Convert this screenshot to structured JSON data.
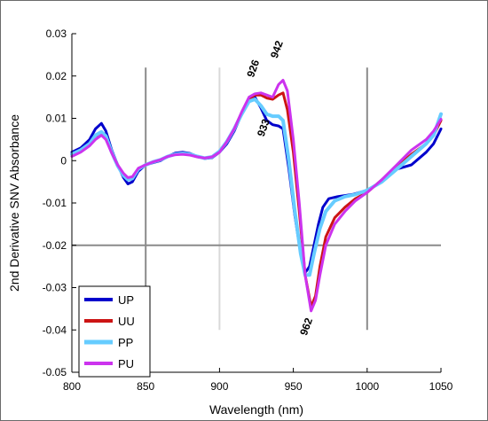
{
  "chart_data": {
    "type": "line",
    "title": "",
    "xlabel": "Wavelength (nm)",
    "ylabel": "2nd Derivative SNV Absorbance",
    "xlim": [
      800,
      1050
    ],
    "ylim": [
      -0.05,
      0.03
    ],
    "xticks": [
      "800",
      "850",
      "900",
      "950",
      "1000",
      "1050"
    ],
    "yticks": [
      "0.03",
      "0.02",
      "0.01",
      "0",
      "-0.01",
      "-0.02",
      "-0.03",
      "-0.04",
      "-0.05"
    ],
    "grid": false,
    "legend_position": "bottom-left",
    "reference_lines": [
      {
        "orientation": "vertical",
        "x": 850,
        "y_from": -0.04,
        "y_to": 0.022,
        "color": "#8a8a8a"
      },
      {
        "orientation": "vertical",
        "x": 900,
        "y_from": -0.04,
        "y_to": 0.022,
        "color": "#d9d9d9"
      },
      {
        "orientation": "vertical",
        "x": 1000,
        "y_from": -0.04,
        "y_to": 0.022,
        "color": "#8a8a8a"
      },
      {
        "orientation": "horizontal",
        "y": -0.02,
        "x_from": 800,
        "x_to": 1050,
        "color": "#8a8a8a"
      }
    ],
    "annotations": [
      {
        "text": "926",
        "x": 925,
        "y": 0.0215,
        "rotate": -70
      },
      {
        "text": "942",
        "x": 941,
        "y": 0.026,
        "rotate": -70
      },
      {
        "text": "933",
        "x": 932,
        "y": 0.0075,
        "rotate": -70
      },
      {
        "text": "962",
        "x": 961,
        "y": -0.0395,
        "rotate": -70
      }
    ],
    "series": [
      {
        "name": "UP",
        "color": "#0000cc",
        "width": 3,
        "points": [
          [
            800,
            0.002
          ],
          [
            806,
            0.003
          ],
          [
            812,
            0.005
          ],
          [
            816,
            0.0075
          ],
          [
            820,
            0.0088
          ],
          [
            823,
            0.007
          ],
          [
            827,
            0.0025
          ],
          [
            831,
            -0.001
          ],
          [
            835,
            -0.004
          ],
          [
            838,
            -0.0055
          ],
          [
            841,
            -0.005
          ],
          [
            845,
            -0.0025
          ],
          [
            850,
            -0.001
          ],
          [
            855,
            -0.0005
          ],
          [
            860,
            0
          ],
          [
            865,
            0.001
          ],
          [
            870,
            0.0018
          ],
          [
            875,
            0.002
          ],
          [
            880,
            0.0017
          ],
          [
            885,
            0.001
          ],
          [
            890,
            0.0005
          ],
          [
            895,
            0.0007
          ],
          [
            900,
            0.002
          ],
          [
            905,
            0.004
          ],
          [
            910,
            0.007
          ],
          [
            915,
            0.011
          ],
          [
            920,
            0.0145
          ],
          [
            924,
            0.015
          ],
          [
            928,
            0.0125
          ],
          [
            932,
            0.0095
          ],
          [
            936,
            0.0085
          ],
          [
            940,
            0.0082
          ],
          [
            943,
            0.0075
          ],
          [
            947,
            -0.002
          ],
          [
            951,
            -0.013
          ],
          [
            955,
            -0.022
          ],
          [
            958,
            -0.0265
          ],
          [
            961,
            -0.025
          ],
          [
            964,
            -0.02
          ],
          [
            967,
            -0.015
          ],
          [
            970,
            -0.011
          ],
          [
            974,
            -0.009
          ],
          [
            980,
            -0.0085
          ],
          [
            990,
            -0.008
          ],
          [
            1000,
            -0.007
          ],
          [
            1010,
            -0.005
          ],
          [
            1020,
            -0.002
          ],
          [
            1030,
            -0.001
          ],
          [
            1040,
            0.002
          ],
          [
            1045,
            0.004
          ],
          [
            1050,
            0.0075
          ]
        ]
      },
      {
        "name": "UU",
        "color": "#cc1414",
        "width": 3,
        "points": [
          [
            800,
            0.0015
          ],
          [
            806,
            0.0025
          ],
          [
            812,
            0.004
          ],
          [
            816,
            0.0058
          ],
          [
            820,
            0.0065
          ],
          [
            823,
            0.0055
          ],
          [
            827,
            0.002
          ],
          [
            831,
            -0.001
          ],
          [
            835,
            -0.0035
          ],
          [
            838,
            -0.0045
          ],
          [
            841,
            -0.0042
          ],
          [
            845,
            -0.002
          ],
          [
            850,
            -0.001
          ],
          [
            855,
            -0.0003
          ],
          [
            860,
            0.0002
          ],
          [
            865,
            0.001
          ],
          [
            870,
            0.0015
          ],
          [
            875,
            0.0016
          ],
          [
            880,
            0.0014
          ],
          [
            885,
            0.0009
          ],
          [
            890,
            0.0006
          ],
          [
            895,
            0.0009
          ],
          [
            900,
            0.0022
          ],
          [
            905,
            0.0045
          ],
          [
            910,
            0.0075
          ],
          [
            915,
            0.011
          ],
          [
            920,
            0.0145
          ],
          [
            924,
            0.0155
          ],
          [
            928,
            0.0155
          ],
          [
            932,
            0.0148
          ],
          [
            936,
            0.0145
          ],
          [
            940,
            0.0155
          ],
          [
            943,
            0.016
          ],
          [
            946,
            0.012
          ],
          [
            950,
            0.002
          ],
          [
            954,
            -0.012
          ],
          [
            958,
            -0.027
          ],
          [
            962,
            -0.0345
          ],
          [
            965,
            -0.032
          ],
          [
            968,
            -0.025
          ],
          [
            972,
            -0.018
          ],
          [
            978,
            -0.0135
          ],
          [
            985,
            -0.011
          ],
          [
            992,
            -0.009
          ],
          [
            1000,
            -0.0075
          ],
          [
            1010,
            -0.0045
          ],
          [
            1020,
            -0.0015
          ],
          [
            1030,
            0.0015
          ],
          [
            1040,
            0.004
          ],
          [
            1045,
            0.006
          ],
          [
            1050,
            0.0095
          ]
        ]
      },
      {
        "name": "PP",
        "color": "#66ccff",
        "width": 4,
        "points": [
          [
            800,
            0.0015
          ],
          [
            806,
            0.0025
          ],
          [
            812,
            0.004
          ],
          [
            816,
            0.006
          ],
          [
            820,
            0.0068
          ],
          [
            823,
            0.0058
          ],
          [
            827,
            0.002
          ],
          [
            831,
            -0.0012
          ],
          [
            835,
            -0.0035
          ],
          [
            838,
            -0.0045
          ],
          [
            841,
            -0.0042
          ],
          [
            845,
            -0.002
          ],
          [
            850,
            -0.001
          ],
          [
            855,
            -0.0003
          ],
          [
            860,
            0.0002
          ],
          [
            865,
            0.001
          ],
          [
            870,
            0.0015
          ],
          [
            875,
            0.0017
          ],
          [
            880,
            0.0015
          ],
          [
            885,
            0.001
          ],
          [
            890,
            0.0006
          ],
          [
            895,
            0.0009
          ],
          [
            900,
            0.0022
          ],
          [
            905,
            0.0045
          ],
          [
            910,
            0.0075
          ],
          [
            915,
            0.011
          ],
          [
            920,
            0.014
          ],
          [
            924,
            0.0145
          ],
          [
            928,
            0.013
          ],
          [
            932,
            0.011
          ],
          [
            936,
            0.0105
          ],
          [
            940,
            0.0105
          ],
          [
            943,
            0.0095
          ],
          [
            947,
            0
          ],
          [
            951,
            -0.012
          ],
          [
            955,
            -0.022
          ],
          [
            958,
            -0.027
          ],
          [
            961,
            -0.027
          ],
          [
            964,
            -0.022
          ],
          [
            968,
            -0.016
          ],
          [
            972,
            -0.012
          ],
          [
            978,
            -0.0095
          ],
          [
            985,
            -0.0085
          ],
          [
            992,
            -0.008
          ],
          [
            1000,
            -0.007
          ],
          [
            1010,
            -0.005
          ],
          [
            1020,
            -0.002
          ],
          [
            1030,
            0.001
          ],
          [
            1040,
            0.004
          ],
          [
            1045,
            0.006
          ],
          [
            1050,
            0.011
          ]
        ]
      },
      {
        "name": "PU",
        "color": "#cc33ee",
        "width": 3,
        "points": [
          [
            800,
            0.001
          ],
          [
            806,
            0.002
          ],
          [
            812,
            0.0035
          ],
          [
            816,
            0.005
          ],
          [
            820,
            0.006
          ],
          [
            823,
            0.005
          ],
          [
            827,
            0.0018
          ],
          [
            831,
            -0.001
          ],
          [
            835,
            -0.003
          ],
          [
            838,
            -0.004
          ],
          [
            841,
            -0.0038
          ],
          [
            845,
            -0.0018
          ],
          [
            850,
            -0.001
          ],
          [
            855,
            -0.0003
          ],
          [
            860,
            0.0002
          ],
          [
            865,
            0.001
          ],
          [
            870,
            0.0014
          ],
          [
            875,
            0.0015
          ],
          [
            880,
            0.0013
          ],
          [
            885,
            0.0009
          ],
          [
            890,
            0.0006
          ],
          [
            895,
            0.0009
          ],
          [
            900,
            0.002
          ],
          [
            905,
            0.0045
          ],
          [
            910,
            0.0075
          ],
          [
            915,
            0.0115
          ],
          [
            920,
            0.015
          ],
          [
            924,
            0.0158
          ],
          [
            928,
            0.016
          ],
          [
            932,
            0.0155
          ],
          [
            936,
            0.015
          ],
          [
            940,
            0.018
          ],
          [
            943,
            0.019
          ],
          [
            946,
            0.0165
          ],
          [
            950,
            0.005
          ],
          [
            954,
            -0.01
          ],
          [
            958,
            -0.027
          ],
          [
            962,
            -0.0355
          ],
          [
            965,
            -0.033
          ],
          [
            968,
            -0.027
          ],
          [
            972,
            -0.02
          ],
          [
            978,
            -0.015
          ],
          [
            985,
            -0.012
          ],
          [
            992,
            -0.0095
          ],
          [
            1000,
            -0.0075
          ],
          [
            1010,
            -0.0045
          ],
          [
            1020,
            -0.001
          ],
          [
            1030,
            0.0025
          ],
          [
            1040,
            0.005
          ],
          [
            1045,
            0.007
          ],
          [
            1050,
            0.0098
          ]
        ]
      }
    ]
  }
}
